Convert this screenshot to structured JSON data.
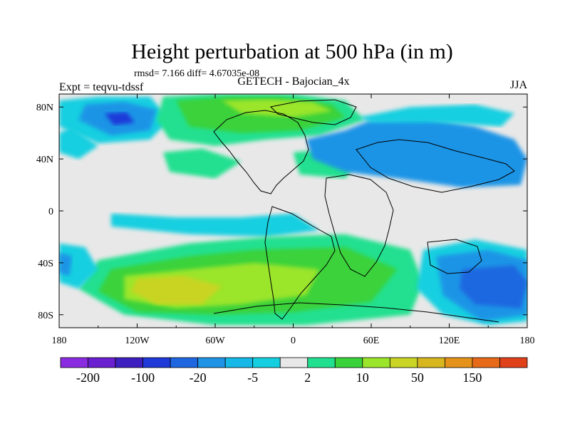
{
  "chart_data": {
    "type": "heatmap",
    "title": "Height perturbation at 500 hPa (in m)",
    "stats_line": "rmsd= 7.166 diff= 4.67035e-08",
    "left_label": "Expt = teqvu-tdssf",
    "center_label": "GETECH - Bajocian_4x",
    "right_label": "JJA",
    "x_ticks": [
      "180",
      "120W",
      "60W",
      "0",
      "60E",
      "120E",
      "180"
    ],
    "y_ticks": [
      "80N",
      "40N",
      "0",
      "40S",
      "80S"
    ],
    "xlim": [
      -180,
      180
    ],
    "ylim": [
      -90,
      90
    ],
    "colorbar": {
      "levels": [
        -200,
        -150,
        -100,
        -50,
        -20,
        -10,
        -5,
        -2,
        2,
        5,
        10,
        20,
        50,
        100,
        150,
        200
      ],
      "labels": [
        "-200",
        "-100",
        "-20",
        "-5",
        "2",
        "10",
        "50",
        "150"
      ],
      "colors": [
        "#8a2be2",
        "#6a1fd0",
        "#3e1fc0",
        "#1f3ad9",
        "#1f67e0",
        "#1f94e6",
        "#15b8e6",
        "#14cfe0",
        "#e8e8e8",
        "#20e08f",
        "#3ad23a",
        "#9be52b",
        "#c9d424",
        "#d7b61f",
        "#e5921b",
        "#e66a18",
        "#e0401a"
      ]
    },
    "regions": [
      {
        "fill": "#14cfe0",
        "lon": [
          -180,
          -150,
          -110,
          -95,
          -110,
          -150,
          -180
        ],
        "lat": [
          85,
          88,
          88,
          70,
          55,
          52,
          65
        ]
      },
      {
        "fill": "#1f94e6",
        "lon": [
          -160,
          -130,
          -105,
          -110,
          -140,
          -165
        ],
        "lat": [
          82,
          84,
          78,
          62,
          58,
          70
        ]
      },
      {
        "fill": "#1f3ad9",
        "lon": [
          -145,
          -128,
          -122,
          -138
        ],
        "lat": [
          75,
          76,
          68,
          66
        ]
      },
      {
        "fill": "#14cfe0",
        "lon": [
          -180,
          -170,
          -150,
          -165,
          -180
        ],
        "lat": [
          60,
          65,
          50,
          40,
          45
        ]
      },
      {
        "fill": "#20e08f",
        "lon": [
          -100,
          -60,
          0,
          40,
          55,
          20,
          -20,
          -60,
          -95,
          -105
        ],
        "lat": [
          88,
          90,
          90,
          85,
          70,
          58,
          55,
          50,
          55,
          70
        ]
      },
      {
        "fill": "#3ad23a",
        "lon": [
          -90,
          -50,
          -10,
          30,
          40,
          5,
          -40,
          -80
        ],
        "lat": [
          85,
          88,
          88,
          82,
          72,
          62,
          60,
          65
        ]
      },
      {
        "fill": "#9be52b",
        "lon": [
          -55,
          -20,
          15,
          30,
          0,
          -40
        ],
        "lat": [
          85,
          86,
          84,
          77,
          72,
          75
        ]
      },
      {
        "fill": "#20e08f",
        "lon": [
          -100,
          -70,
          -40,
          -60,
          -95
        ],
        "lat": [
          45,
          48,
          38,
          25,
          30
        ]
      },
      {
        "fill": "#20e08f",
        "lon": [
          0,
          30,
          50,
          40,
          5
        ],
        "lat": [
          45,
          48,
          38,
          25,
          28
        ]
      },
      {
        "fill": "#1f94e6",
        "lon": [
          10,
          40,
          60,
          100,
          140,
          170,
          180,
          175,
          130,
          80,
          40,
          15
        ],
        "lat": [
          55,
          62,
          70,
          72,
          65,
          55,
          40,
          20,
          18,
          25,
          30,
          40
        ]
      },
      {
        "fill": "#14cfe0",
        "lon": [
          50,
          90,
          140,
          170,
          160,
          110,
          60
        ],
        "lat": [
          72,
          80,
          82,
          75,
          65,
          68,
          68
        ]
      },
      {
        "fill": "#14cfe0",
        "lon": [
          -140,
          -90,
          -40,
          0,
          20,
          -20,
          -80,
          -140
        ],
        "lat": [
          -2,
          -5,
          -5,
          -2,
          -15,
          -20,
          -18,
          -12
        ]
      },
      {
        "fill": "#20e08f",
        "lon": [
          -150,
          -80,
          -20,
          40,
          90,
          100,
          90,
          10,
          -60,
          -130,
          -165
        ],
        "lat": [
          -38,
          -25,
          -20,
          -18,
          -30,
          -55,
          -80,
          -88,
          -88,
          -80,
          -60
        ]
      },
      {
        "fill": "#3ad23a",
        "lon": [
          -140,
          -80,
          -30,
          40,
          80,
          60,
          0,
          -60,
          -120,
          -150
        ],
        "lat": [
          -45,
          -35,
          -30,
          -28,
          -45,
          -70,
          -78,
          -80,
          -78,
          -62
        ]
      },
      {
        "fill": "#9be52b",
        "lon": [
          -130,
          -80,
          -30,
          20,
          10,
          -40,
          -90,
          -130
        ],
        "lat": [
          -50,
          -45,
          -40,
          -45,
          -65,
          -72,
          -75,
          -68
        ]
      },
      {
        "fill": "#c9d424",
        "lon": [
          -120,
          -85,
          -55,
          -70,
          -105,
          -125
        ],
        "lat": [
          -52,
          -50,
          -58,
          -72,
          -72,
          -62
        ]
      },
      {
        "fill": "#14cfe0",
        "lon": [
          100,
          140,
          180,
          180,
          150,
          115,
          95
        ],
        "lat": [
          -30,
          -22,
          -30,
          -85,
          -88,
          -80,
          -60
        ]
      },
      {
        "fill": "#1f94e6",
        "lon": [
          110,
          150,
          180,
          180,
          145,
          115
        ],
        "lat": [
          -35,
          -30,
          -38,
          -80,
          -85,
          -65
        ]
      },
      {
        "fill": "#1f67e0",
        "lon": [
          130,
          170,
          180,
          175,
          140,
          128
        ],
        "lat": [
          -45,
          -42,
          -55,
          -75,
          -72,
          -60
        ]
      },
      {
        "fill": "#14cfe0",
        "lon": [
          -180,
          -160,
          -150,
          -165,
          -180
        ],
        "lat": [
          -25,
          -28,
          -45,
          -60,
          -55
        ]
      },
      {
        "fill": "#1f94e6",
        "lon": [
          -180,
          -170,
          -172,
          -180
        ],
        "lat": [
          -32,
          -35,
          -50,
          -48
        ]
      }
    ]
  }
}
